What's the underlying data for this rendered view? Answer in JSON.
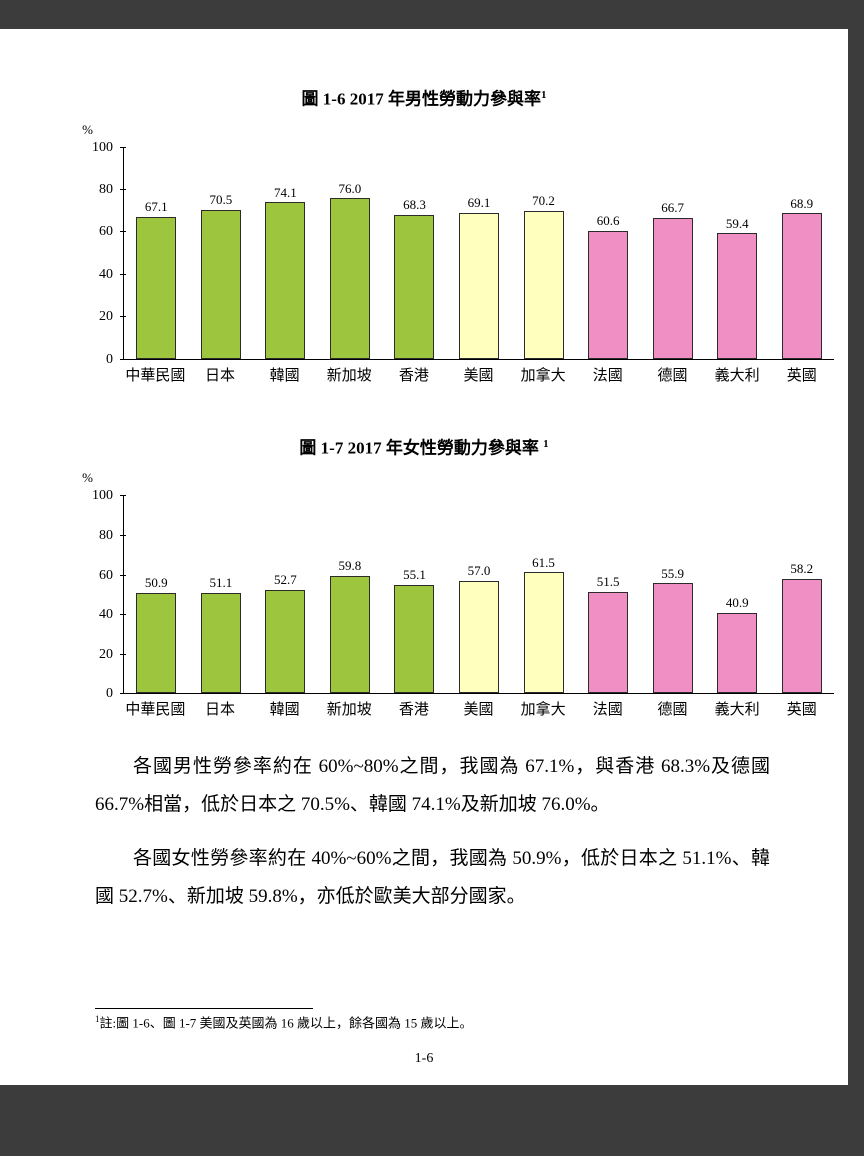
{
  "page": {
    "paragraphs": [
      {
        "text": "各國男性勞參率約在 60%~80%之間，我國為 67.1%，與香港 68.3%及德國 66.7%相當，低於日本之 70.5%、韓國 74.1%及新加坡 76.0%。"
      },
      {
        "text": "各國女性勞參率約在 40%~60%之間，我國為 50.9%，低於日本之 51.1%、韓國 52.7%、新加坡 59.8%，亦低於歐美大部分國家。"
      }
    ],
    "footnote_marker": "1",
    "footnote_text": "註:圖 1-6、圖 1-7 美國及英國為 16 歲以上，餘各國為 15 歲以上。",
    "page_number": "1-6"
  },
  "chart_data": [
    {
      "type": "bar",
      "title": "圖 1-6  2017 年男性勞動力參與率",
      "title_superscript": "1",
      "ylabel": "%",
      "ylim": [
        0,
        100
      ],
      "yticks": [
        0,
        20,
        40,
        60,
        80,
        100
      ],
      "grid": false,
      "legend": false,
      "categories": [
        "中華民國",
        "日本",
        "韓國",
        "新加坡",
        "香港",
        "美國",
        "加拿大",
        "法國",
        "德國",
        "義大利",
        "英國"
      ],
      "values": [
        67.1,
        70.5,
        74.1,
        76.0,
        68.3,
        69.1,
        70.2,
        60.6,
        66.7,
        59.4,
        68.9
      ],
      "bar_colors": [
        "#9DC63E",
        "#9DC63E",
        "#9DC63E",
        "#9DC63E",
        "#9DC63E",
        "#FFFFBE",
        "#FFFFBE",
        "#EF8FC3",
        "#EF8FC3",
        "#EF8FC3",
        "#EF8FC3"
      ]
    },
    {
      "type": "bar",
      "title": "圖 1-7  2017 年女性勞動力參與率 ",
      "title_superscript": "1",
      "ylabel": "%",
      "ylim": [
        0,
        100
      ],
      "yticks": [
        0,
        20,
        40,
        60,
        80,
        100
      ],
      "grid": false,
      "legend": false,
      "categories": [
        "中華民國",
        "日本",
        "韓國",
        "新加坡",
        "香港",
        "美國",
        "加拿大",
        "法國",
        "德國",
        "義大利",
        "英國"
      ],
      "values": [
        50.9,
        51.1,
        52.7,
        59.8,
        55.1,
        57.0,
        61.5,
        51.5,
        55.9,
        40.9,
        58.2
      ],
      "bar_colors": [
        "#9DC63E",
        "#9DC63E",
        "#9DC63E",
        "#9DC63E",
        "#9DC63E",
        "#FFFFBE",
        "#FFFFBE",
        "#EF8FC3",
        "#EF8FC3",
        "#EF8FC3",
        "#EF8FC3"
      ]
    }
  ],
  "colors": {
    "asia_bar": "#9DC63E",
    "north_america_bar": "#FFFFBE",
    "europe_bar": "#EF8FC3",
    "page_background": "#FFFFFF",
    "outer_background": "#3C3C3C"
  }
}
